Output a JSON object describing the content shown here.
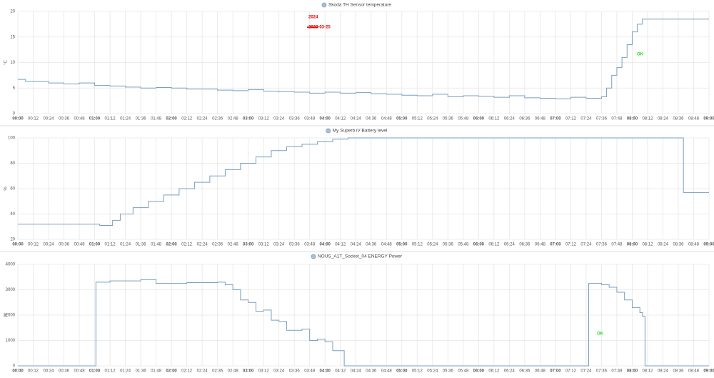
{
  "chart_data": [
    {
      "type": "line",
      "step": true,
      "title": "Skoda TH Sensor temperature",
      "y_label": "°C",
      "color": "#7a9fbd",
      "grid": true,
      "annotations": [
        {
          "text": "2024",
          "color": "#e00000"
        },
        {
          "text": "2023-03-25",
          "color": "#e00000",
          "strikethrough": true
        },
        {
          "text": "OK",
          "color": "#22dd22"
        }
      ],
      "xlim": [
        "00:00",
        "09:00"
      ],
      "xticks": [
        "00:00",
        "00:12",
        "00:24",
        "00:36",
        "00:48",
        "01:00",
        "01:12",
        "01:24",
        "01:36",
        "01:48",
        "02:00",
        "02:12",
        "02:24",
        "02:36",
        "02:48",
        "03:00",
        "03:12",
        "03:24",
        "03:36",
        "03:48",
        "04:00",
        "04:12",
        "04:24",
        "04:36",
        "04:48",
        "05:00",
        "05:12",
        "05:24",
        "05:36",
        "05:48",
        "06:00",
        "06:12",
        "06:24",
        "06:36",
        "06:48",
        "07:00",
        "07:12",
        "07:24",
        "07:36",
        "07:48",
        "08:00",
        "08:12",
        "08:24",
        "08:36",
        "08:48",
        "09:00"
      ],
      "ylim": [
        0,
        20
      ],
      "yticks": [
        0,
        5,
        10,
        15,
        20
      ],
      "x": [
        "00:00",
        "00:06",
        "00:24",
        "00:36",
        "00:48",
        "01:00",
        "01:12",
        "01:24",
        "01:36",
        "01:48",
        "02:00",
        "02:12",
        "02:36",
        "02:48",
        "03:00",
        "03:12",
        "03:24",
        "03:36",
        "03:48",
        "04:00",
        "04:12",
        "04:24",
        "04:36",
        "04:48",
        "05:00",
        "05:12",
        "05:24",
        "05:36",
        "05:48",
        "06:00",
        "06:12",
        "06:24",
        "06:36",
        "06:48",
        "07:00",
        "07:12",
        "07:24",
        "07:36",
        "07:40",
        "07:44",
        "07:48",
        "07:52",
        "07:56",
        "08:00",
        "08:04",
        "08:08",
        "09:00"
      ],
      "values": [
        6.7,
        6.3,
        6.0,
        5.8,
        6.0,
        5.5,
        5.4,
        5.2,
        5.0,
        5.1,
        5.0,
        4.8,
        4.6,
        4.5,
        4.7,
        4.4,
        4.3,
        4.2,
        4.0,
        4.2,
        4.0,
        4.1,
        3.9,
        3.8,
        3.6,
        3.5,
        3.8,
        3.3,
        3.5,
        3.4,
        3.2,
        3.5,
        3.1,
        3.0,
        2.9,
        3.2,
        3.0,
        3.3,
        5.0,
        7.5,
        9.0,
        11.0,
        13.5,
        16.0,
        17.5,
        18.5,
        18.5
      ]
    },
    {
      "type": "line",
      "step": true,
      "title": "My Superb iV Battery level",
      "y_label": "%",
      "color": "#7a9fbd",
      "grid": true,
      "xlim": [
        "00:00",
        "09:00"
      ],
      "xticks": [
        "00:00",
        "00:12",
        "00:24",
        "00:36",
        "00:48",
        "01:00",
        "01:12",
        "01:24",
        "01:36",
        "01:48",
        "02:00",
        "02:12",
        "02:24",
        "02:36",
        "02:48",
        "03:00",
        "03:12",
        "03:24",
        "03:36",
        "03:48",
        "04:00",
        "04:12",
        "04:24",
        "04:36",
        "04:48",
        "05:00",
        "05:12",
        "05:24",
        "05:36",
        "05:48",
        "06:00",
        "06:12",
        "06:24",
        "06:36",
        "06:48",
        "07:00",
        "07:12",
        "07:24",
        "07:36",
        "07:48",
        "08:00",
        "08:12",
        "08:24",
        "08:36",
        "08:48",
        "09:00"
      ],
      "ylim": [
        20,
        100
      ],
      "yticks": [
        20,
        40,
        60,
        80,
        100
      ],
      "x": [
        "00:00",
        "01:04",
        "01:14",
        "01:20",
        "01:30",
        "01:42",
        "01:54",
        "02:06",
        "02:18",
        "02:30",
        "02:42",
        "02:54",
        "03:06",
        "03:18",
        "03:30",
        "03:42",
        "03:54",
        "04:06",
        "04:18",
        "08:40",
        "09:00"
      ],
      "values": [
        32,
        31,
        35,
        40,
        45,
        50,
        55,
        60,
        65,
        70,
        75,
        80,
        85,
        90,
        93,
        95,
        97,
        99,
        100,
        57,
        57
      ]
    },
    {
      "type": "line",
      "step": true,
      "title": "NOUS_A1T_Socket_04 ENERGY Power",
      "y_label": "W",
      "color": "#7a9fbd",
      "grid": true,
      "annotations": [
        {
          "text": "OK",
          "color": "#22dd22"
        }
      ],
      "xlim": [
        "00:00",
        "09:00"
      ],
      "xticks": [
        "00:00",
        "00:12",
        "00:24",
        "00:36",
        "00:48",
        "01:00",
        "01:12",
        "01:24",
        "01:36",
        "01:48",
        "02:00",
        "02:12",
        "02:24",
        "02:36",
        "02:48",
        "03:00",
        "03:12",
        "03:24",
        "03:36",
        "03:48",
        "04:00",
        "04:12",
        "04:24",
        "04:36",
        "04:48",
        "05:00",
        "05:12",
        "05:24",
        "05:36",
        "05:48",
        "06:00",
        "06:12",
        "06:24",
        "06:36",
        "06:48",
        "07:00",
        "07:12",
        "07:24",
        "07:36",
        "07:48",
        "08:00",
        "08:12",
        "08:24",
        "08:36",
        "08:48",
        "09:00"
      ],
      "ylim": [
        0,
        4000
      ],
      "yticks": [
        0,
        1000,
        2000,
        3000,
        4000
      ],
      "x": [
        "00:00",
        "01:01",
        "01:12",
        "01:36",
        "01:48",
        "02:12",
        "02:36",
        "02:42",
        "02:48",
        "02:54",
        "03:00",
        "03:06",
        "03:12",
        "03:18",
        "03:24",
        "03:30",
        "03:42",
        "03:48",
        "03:54",
        "04:00",
        "04:06",
        "04:15",
        "07:26",
        "07:36",
        "07:42",
        "07:48",
        "07:54",
        "08:00",
        "08:06",
        "08:08",
        "08:10",
        "09:00"
      ],
      "values": [
        0,
        3300,
        3350,
        3400,
        3250,
        3280,
        3300,
        3200,
        3000,
        2600,
        2500,
        2150,
        2200,
        1800,
        1750,
        1400,
        1450,
        1000,
        1050,
        950,
        600,
        0,
        3250,
        3200,
        3100,
        2900,
        2600,
        2300,
        2100,
        1950,
        0,
        0
      ]
    }
  ]
}
